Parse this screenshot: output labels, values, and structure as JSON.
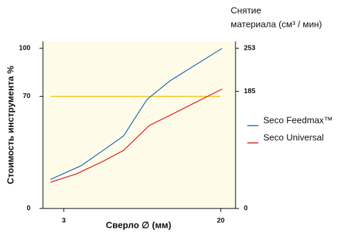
{
  "chart_data": {
    "type": "line",
    "ylabel": "Стоимость инструмента %",
    "y2label": [
      "Снятие",
      "материала (см³ / мин)"
    ],
    "xlabel": "Сверло ∅ (мм)",
    "xlim": [
      0.75,
      21.6
    ],
    "xticks": [
      3,
      20
    ],
    "ylim": [
      0,
      100
    ],
    "yticks": [
      0,
      70,
      100
    ],
    "y2lim": [
      0,
      253
    ],
    "y2ticks": [
      0,
      185,
      253
    ],
    "reference_line": {
      "axis": "y",
      "value": 70,
      "color": "#f0c419"
    },
    "series": [
      {
        "name": "Seco Feedmax™",
        "color": "#1f6fb8",
        "axis": "y2",
        "x": [
          1.57,
          4.88,
          7.36,
          9.47,
          12.02,
          14.51,
          20.15
        ],
        "values": [
          45.8,
          67.6,
          92.7,
          114.5,
          172.3,
          201.7,
          253
        ]
      },
      {
        "name": "Seco Universal",
        "color": "#e02020",
        "axis": "y2",
        "x": [
          1.57,
          4.35,
          7.21,
          9.47,
          12.25,
          14.51,
          20.15
        ],
        "values": [
          41.4,
          54.5,
          74.2,
          91.6,
          130.9,
          147.3,
          188.7
        ]
      }
    ]
  }
}
